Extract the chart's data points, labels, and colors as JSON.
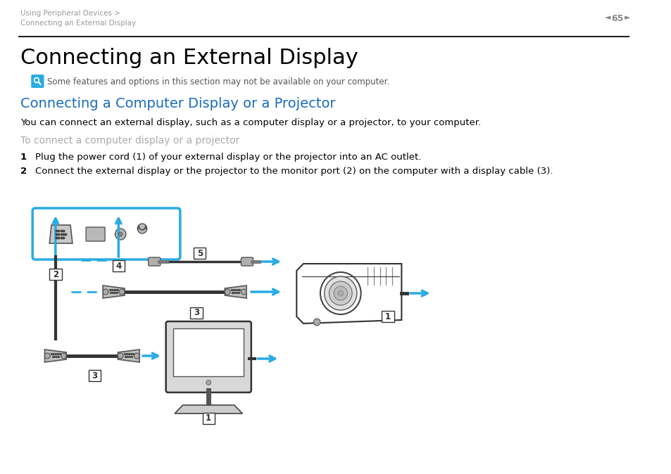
{
  "bg_color": "#ffffff",
  "page_header_line1": "Using Peripheral Devices >",
  "page_header_line2": "Connecting an External Display",
  "page_header_color": "#999999",
  "page_number": "65",
  "page_number_color": "#888888",
  "title": "Connecting an External Display",
  "title_color": "#000000",
  "title_fontsize": 22,
  "note_icon_color": "#29ABE2",
  "note_text": "Some features and options in this section may not be available on your computer.",
  "note_text_color": "#555555",
  "note_text_fontsize": 8.5,
  "section_title": "Connecting a Computer Display or a Projector",
  "section_title_color": "#1a6bbf",
  "section_title_fontsize": 14,
  "body_text1": "You can connect an external display, such as a computer display or a projector, to your computer.",
  "body_text1_color": "#000000",
  "body_text1_fontsize": 9.5,
  "subheading": "To connect a computer display or a projector",
  "subheading_color": "#aaaaaa",
  "subheading_fontsize": 10,
  "step1_text": "Plug the power cord (1) of your external display or the projector into an AC outlet.",
  "step2_text": "Connect the external display or the projector to the monitor port (2) on the computer with a display cable (3).",
  "step_text_color": "#000000",
  "step_text_fontsize": 9.5,
  "cyan_color": "#29ABE2",
  "dark_color": "#333333",
  "light_gray": "#cccccc",
  "mid_gray": "#888888"
}
